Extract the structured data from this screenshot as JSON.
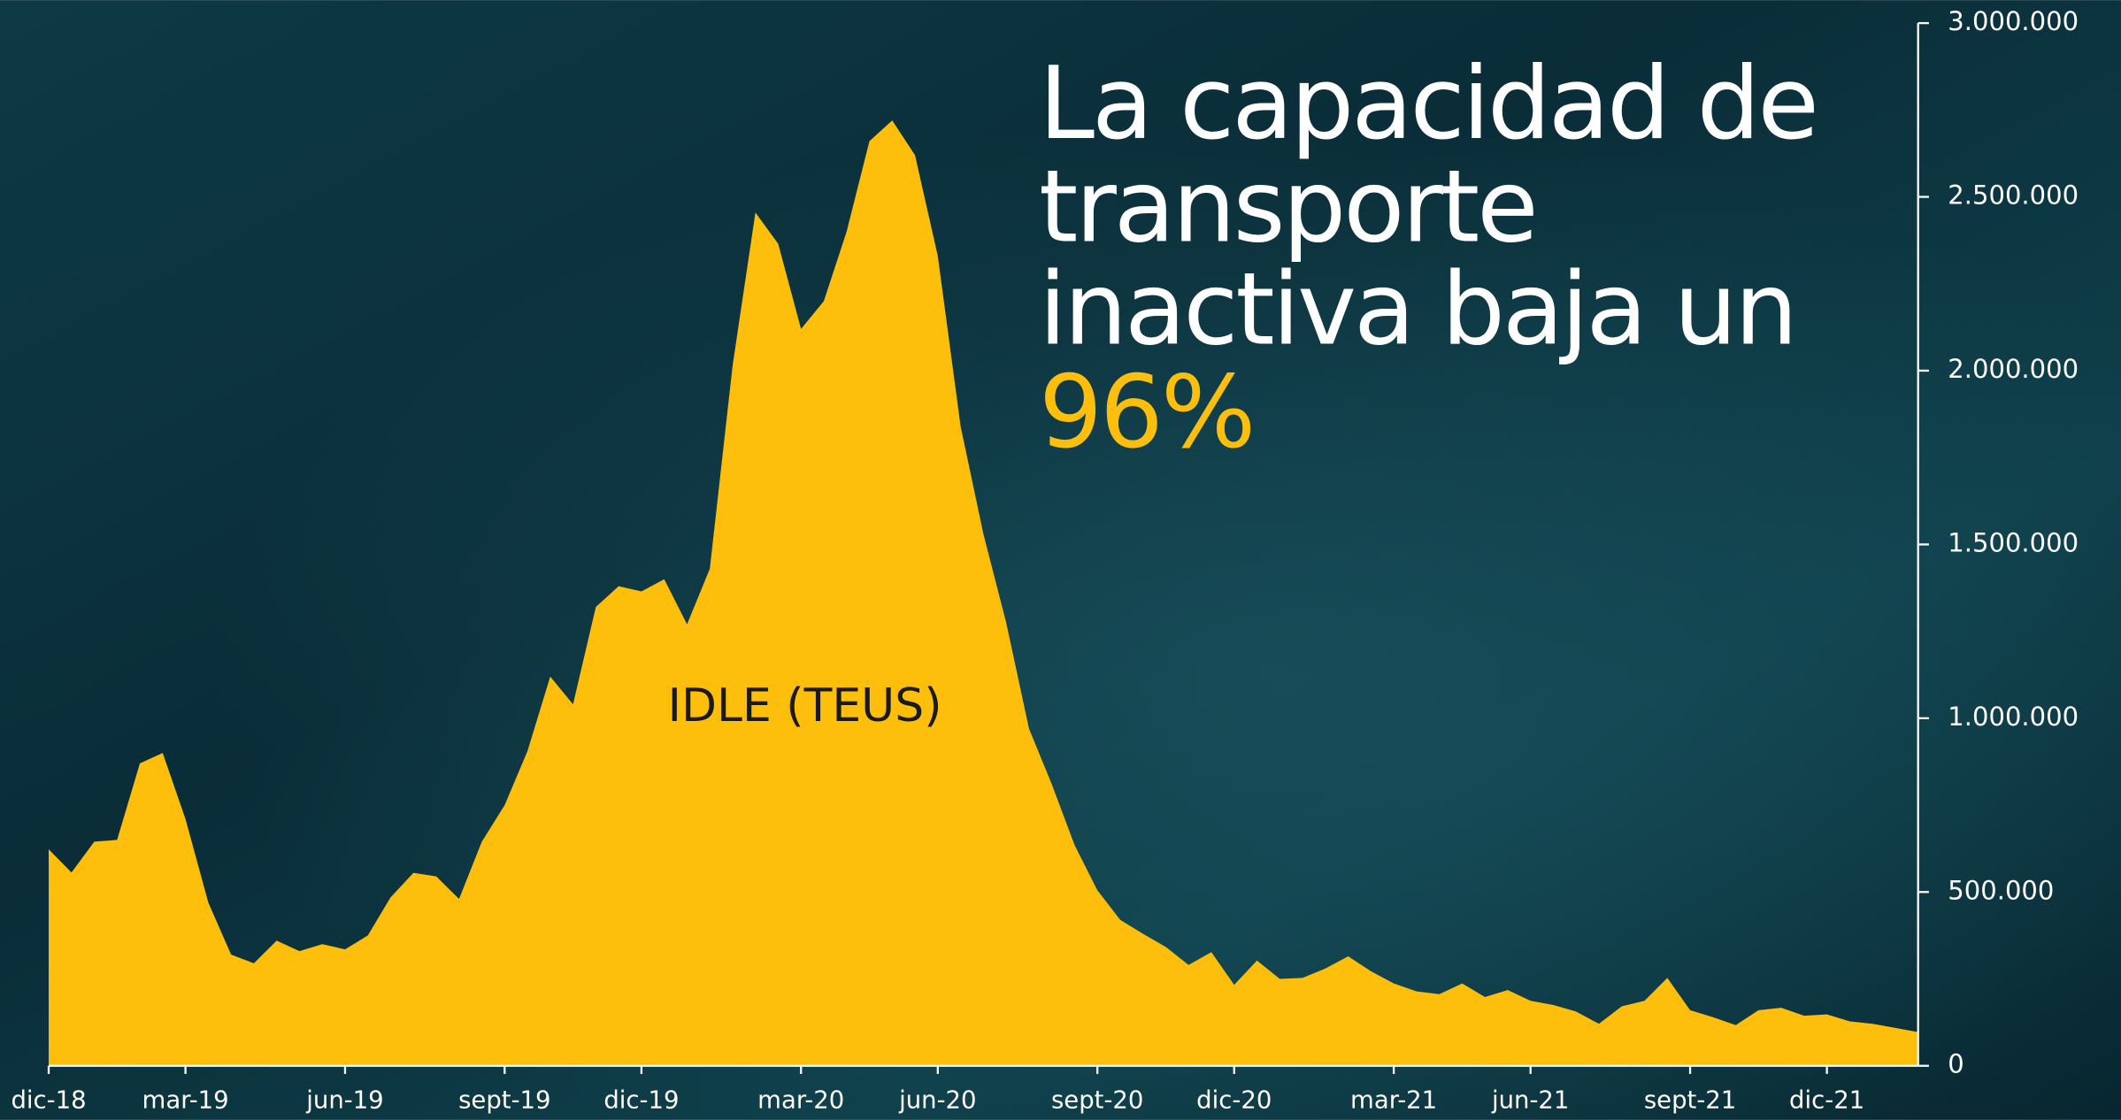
{
  "chart_data": {
    "type": "area",
    "title_lines": [
      "La capacidad de",
      "transporte",
      "inactiva baja un"
    ],
    "title_highlight": "96%",
    "categories": [
      "dic-18",
      null,
      null,
      null,
      null,
      null,
      "mar-19",
      null,
      null,
      null,
      null,
      null,
      null,
      "jun-19",
      null,
      null,
      null,
      null,
      null,
      null,
      "sept-19",
      null,
      null,
      null,
      null,
      null,
      "dic-19",
      null,
      null,
      null,
      null,
      null,
      null,
      "mar-20",
      null,
      null,
      null,
      null,
      null,
      "jun-20",
      null,
      null,
      null,
      null,
      null,
      null,
      "sept-20",
      null,
      null,
      null,
      null,
      null,
      "dic-20",
      null,
      null,
      null,
      null,
      null,
      null,
      "mar-21",
      null,
      null,
      null,
      null,
      null,
      "jun-21",
      null,
      null,
      null,
      null,
      null,
      null,
      "sept-21",
      null,
      null,
      null,
      null,
      null,
      "dic-21",
      null,
      null,
      null,
      null
    ],
    "series": [
      {
        "name": "IDLE (TEUS)",
        "color": "#fdbf0c",
        "values": [
          623000,
          556000,
          645000,
          650000,
          870000,
          900000,
          710000,
          470000,
          320000,
          295000,
          360000,
          330000,
          350000,
          335000,
          375000,
          485000,
          555000,
          545000,
          480000,
          645000,
          750000,
          905000,
          1120000,
          1040000,
          1320000,
          1380000,
          1365000,
          1400000,
          1270000,
          1430000,
          2015000,
          2455000,
          2365000,
          2120000,
          2200000,
          2400000,
          2660000,
          2720000,
          2620000,
          2330000,
          1840000,
          1530000,
          1275000,
          970000,
          810000,
          635000,
          505000,
          420000,
          380000,
          342000,
          290000,
          327000,
          233000,
          303000,
          250000,
          253000,
          280000,
          315000,
          272000,
          237000,
          214000,
          206000,
          237000,
          198000,
          218000,
          187000,
          175000,
          156000,
          121000,
          171000,
          187000,
          253000,
          160000,
          140000,
          117000,
          160000,
          167000,
          144000,
          148000,
          128000,
          121000,
          109000,
          97000
        ]
      }
    ],
    "ylim": [
      0,
      3000000
    ],
    "yticks": [
      0,
      {
        "value": 500000,
        "label": "500.000"
      },
      {
        "value": 1000000,
        "label": "1.000.000"
      },
      {
        "value": 1500000,
        "label": "1.500.000"
      },
      {
        "value": 2000000,
        "label": "2.000.000"
      },
      {
        "value": 2500000,
        "label": "2.500.000"
      },
      {
        "value": 3000000,
        "label": "3.000.000"
      }
    ],
    "grid": false
  }
}
